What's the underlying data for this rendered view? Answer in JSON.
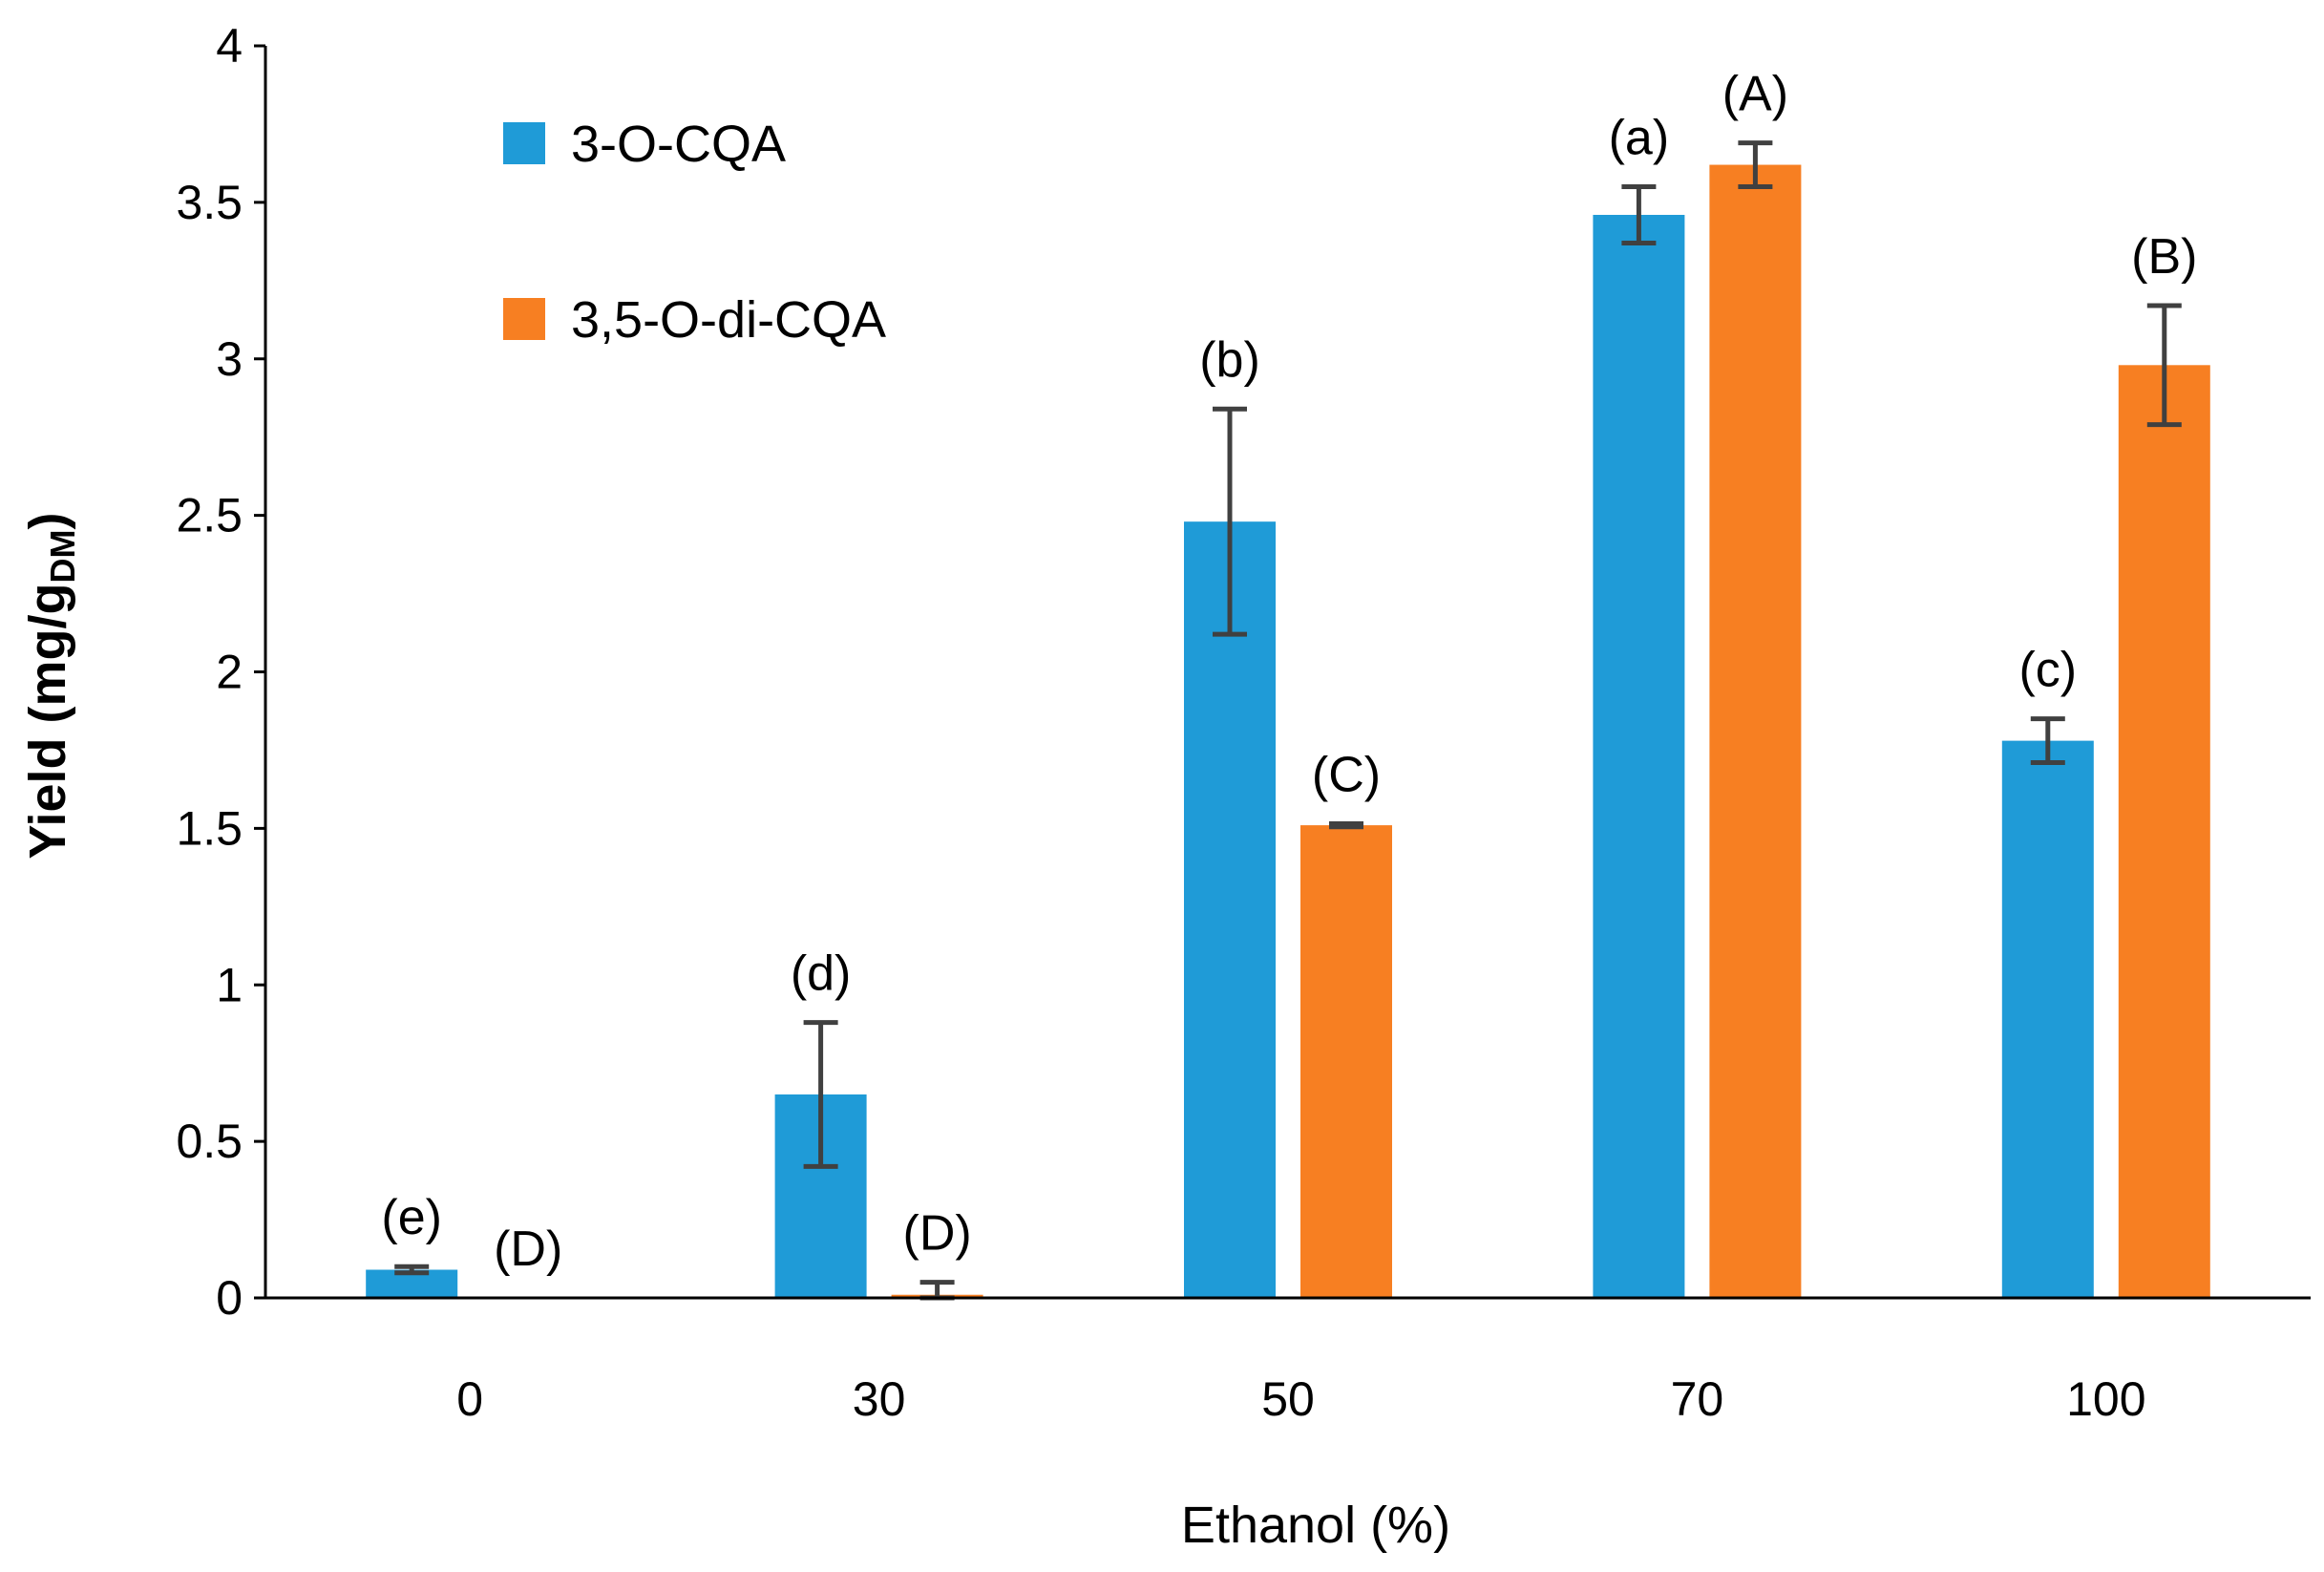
{
  "chart_data": {
    "type": "bar",
    "title": "",
    "xlabel": "Ethanol (%)",
    "ylabel": "Yield (mg/g",
    "ylabel_subscript": "DM",
    "ylabel_close": ")",
    "ylim": [
      0,
      4
    ],
    "yticks": [
      0,
      0.5,
      1,
      1.5,
      2,
      2.5,
      3,
      3.5,
      4
    ],
    "categories": [
      "0",
      "30",
      "50",
      "70",
      "100"
    ],
    "series": [
      {
        "name": "3-O-CQA",
        "color": "#1F9BD7",
        "values": [
          0.09,
          0.65,
          2.48,
          3.46,
          1.78
        ],
        "errors": [
          0.01,
          0.23,
          0.36,
          0.09,
          0.07
        ],
        "labels": [
          "(e)",
          "(d)",
          "(b)",
          "(a)",
          "(c)"
        ]
      },
      {
        "name": "3,5-O-di-CQA",
        "color": "#F77F22",
        "values": [
          0.0,
          0.01,
          1.51,
          3.62,
          2.98
        ],
        "errors": [
          0.0,
          0.04,
          0.005,
          0.07,
          0.19
        ],
        "labels": [
          "(D)",
          "(D)",
          "(C)",
          "(A)",
          "(B)"
        ]
      }
    ],
    "legend_position": "top-left"
  }
}
